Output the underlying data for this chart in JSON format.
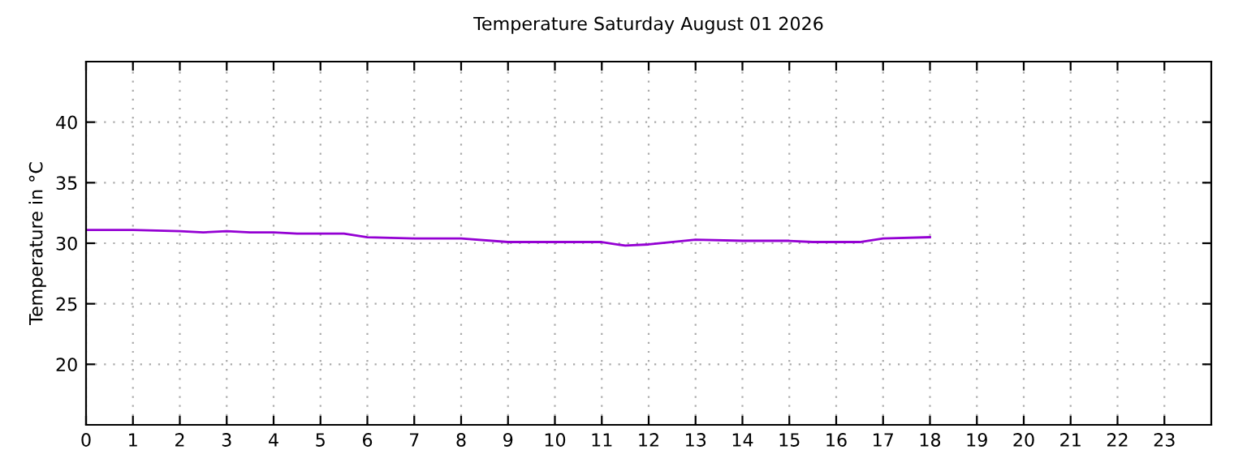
{
  "chart_data": {
    "type": "line",
    "title": "Temperature Saturday August 01 2026",
    "ylabel": "Temperature in °C",
    "x": [
      0,
      1,
      2,
      2.5,
      3,
      3.5,
      4,
      4.5,
      5.5,
      6,
      7,
      8,
      9,
      10,
      11,
      11.5,
      12,
      13,
      14,
      15,
      15.5,
      16.5,
      17,
      18
    ],
    "series": [
      {
        "color": "#9400d3",
        "values": [
          31.1,
          31.1,
          31.0,
          30.9,
          31.0,
          30.9,
          30.9,
          30.8,
          30.8,
          30.5,
          30.4,
          30.4,
          30.1,
          30.1,
          30.1,
          29.8,
          29.9,
          30.3,
          30.2,
          30.2,
          30.1,
          30.1,
          30.4,
          30.5
        ]
      }
    ],
    "xlim": [
      0,
      24
    ],
    "xticks": [
      0,
      1,
      2,
      3,
      4,
      5,
      6,
      7,
      8,
      9,
      10,
      11,
      12,
      13,
      14,
      15,
      16,
      17,
      18,
      19,
      20,
      21,
      22,
      23
    ],
    "ylim": [
      15,
      45
    ],
    "yticks": [
      20,
      25,
      30,
      35,
      40
    ],
    "grid": true,
    "legend": false,
    "marker": "none",
    "line_style": "solid"
  }
}
